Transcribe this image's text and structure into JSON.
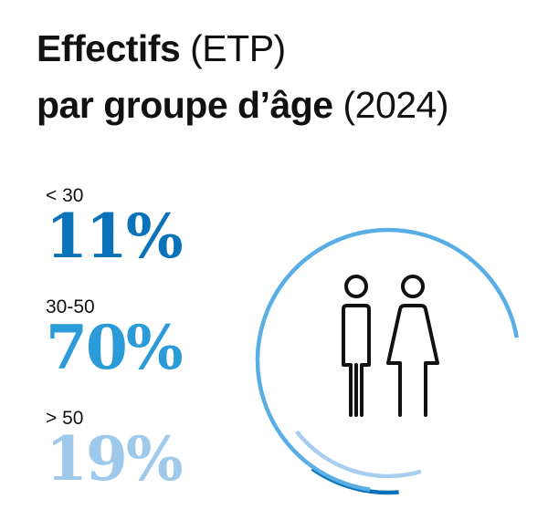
{
  "title": {
    "bold_1": "Effectifs",
    "light_1": " (ETP)",
    "bold_2": "par groupe d’âge",
    "light_2": " (2024)"
  },
  "chart_data": {
    "type": "pie",
    "categories": [
      "< 30",
      "30-50",
      "> 50"
    ],
    "values": [
      11,
      70,
      19
    ],
    "value_labels": [
      "11%",
      "70%",
      "19%"
    ],
    "colors": [
      "#0a72b9",
      "#5aaee6",
      "#a8cdee"
    ],
    "title": "Effectifs (ETP) par groupe d’âge (2024)",
    "center_icon": "two-people-icon"
  }
}
